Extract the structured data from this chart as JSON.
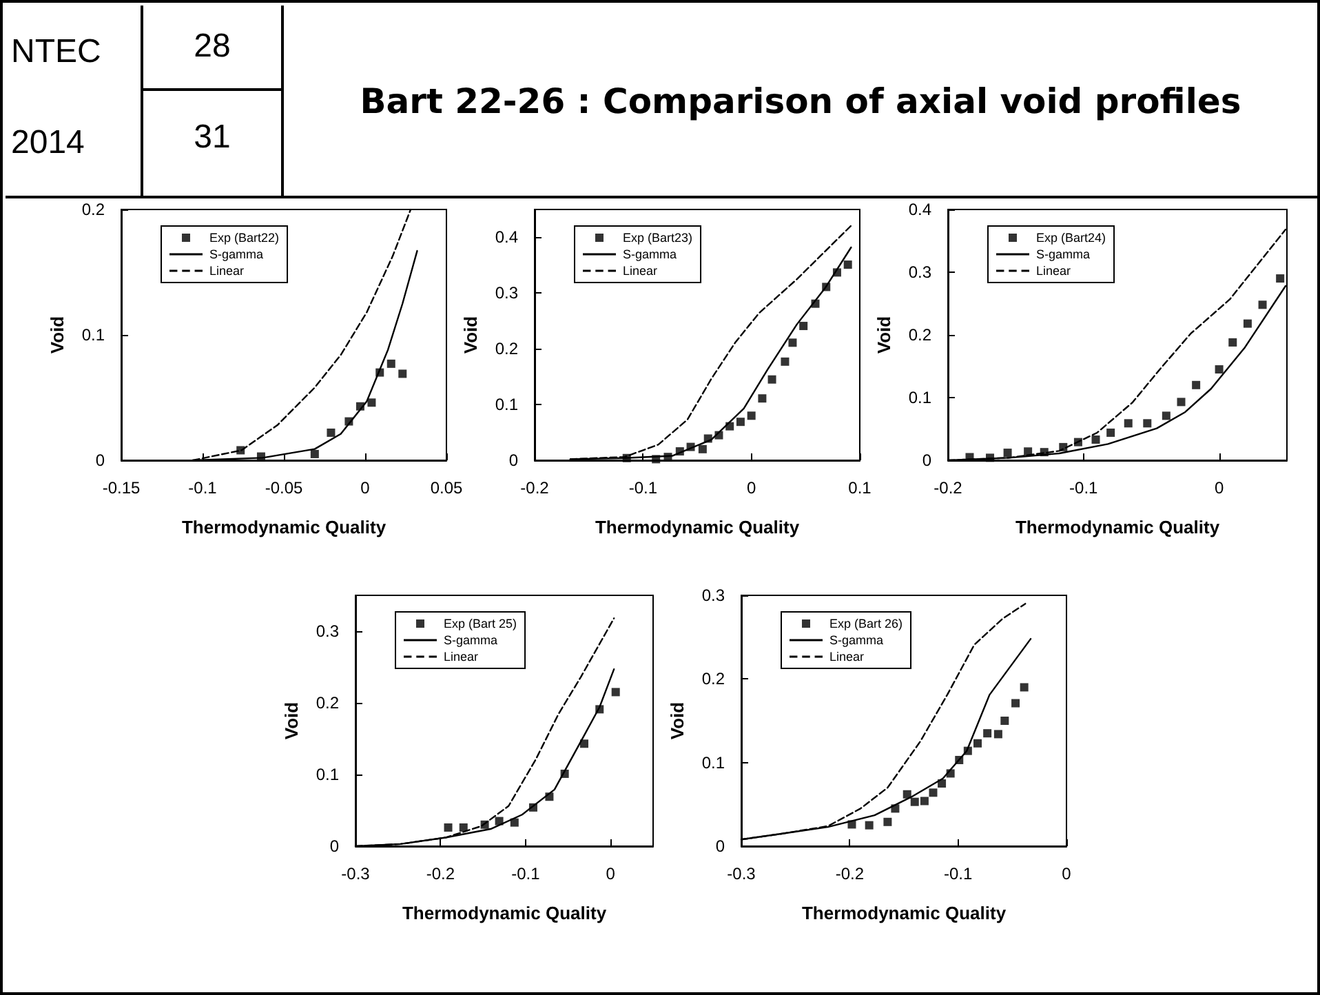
{
  "chart_data": [
    {
      "type": "other",
      "title": "Bart 22-26 : Comparison of axial void profiles",
      "annotations": [
        "NTEC",
        "2014",
        "28",
        "31"
      ]
    },
    {
      "type": "scatter",
      "xlabel": "Thermodynamic Quality",
      "ylabel": "Void",
      "xlim": [
        -0.15,
        0.05
      ],
      "xticks": [
        -0.15,
        -0.1,
        -0.05,
        0,
        0.05
      ],
      "ylim": [
        0,
        0.2
      ],
      "yticks": [
        0,
        0.1,
        0.2
      ],
      "grid": false,
      "legend": "top left",
      "series": [
        {
          "name": "Exp (Bart22)",
          "type": "scatter",
          "marker": "square",
          "color": "#000000",
          "x": [
            -0.0766,
            -0.064,
            -0.031,
            -0.021,
            -0.01,
            -0.003,
            0.004,
            0.009,
            0.016,
            0.023
          ],
          "values": [
            0.008,
            0.003,
            0.005,
            0.022,
            0.031,
            0.043,
            0.046,
            0.07,
            0.077,
            0.069
          ]
        },
        {
          "name": "S-gamma",
          "type": "line",
          "marker": "none",
          "line_style": "solid",
          "color": "#000000",
          "x": [
            -0.106,
            -0.063,
            -0.031,
            -0.015,
            0.001,
            0.014,
            0.023,
            0.032
          ],
          "values": [
            0,
            0.002,
            0.009,
            0.021,
            0.047,
            0.088,
            0.125,
            0.167
          ]
        },
        {
          "name": "Linear",
          "type": "line",
          "marker": "none",
          "line_style": "dashed",
          "color": "#000000",
          "x": [
            -0.106,
            -0.076,
            -0.054,
            -0.031,
            -0.015,
            0.001,
            0.017,
            0.028
          ],
          "values": [
            0,
            0.008,
            0.028,
            0.058,
            0.084,
            0.118,
            0.163,
            0.2
          ]
        }
      ]
    },
    {
      "type": "scatter",
      "xlabel": "Thermodynamic Quality",
      "ylabel": "Void",
      "xlim": [
        -0.2,
        0.1
      ],
      "xticks": [
        -0.2,
        -0.1,
        0,
        0.1
      ],
      "ylim": [
        0,
        0.45
      ],
      "yticks": [
        0,
        0.1,
        0.2,
        0.3,
        0.4
      ],
      "grid": false,
      "legend": "top left",
      "series": [
        {
          "name": "Exp (Bart23)",
          "type": "scatter",
          "marker": "square",
          "color": "#000000",
          "x": [
            -0.115,
            -0.088,
            -0.077,
            -0.066,
            -0.056,
            -0.045,
            -0.04,
            -0.03,
            -0.02,
            -0.01,
            0,
            0.01,
            0.019,
            0.031,
            0.038,
            0.048,
            0.059,
            0.069,
            0.079,
            0.089
          ],
          "values": [
            0.004,
            0.002,
            0.006,
            0.016,
            0.024,
            0.02,
            0.039,
            0.045,
            0.061,
            0.069,
            0.08,
            0.111,
            0.145,
            0.177,
            0.211,
            0.241,
            0.281,
            0.311,
            0.337,
            0.351
          ]
        },
        {
          "name": "S-gamma",
          "type": "line",
          "marker": "none",
          "line_style": "solid",
          "color": "#000000",
          "x": [
            -0.167,
            -0.117,
            -0.073,
            -0.037,
            -0.007,
            0.015,
            0.042,
            0.068,
            0.092
          ],
          "values": [
            0.002,
            0.004,
            0.008,
            0.037,
            0.093,
            0.163,
            0.244,
            0.309,
            0.382
          ]
        },
        {
          "name": "Linear",
          "type": "line",
          "marker": "none",
          "line_style": "dashed",
          "color": "#000000",
          "x": [
            -0.167,
            -0.117,
            -0.086,
            -0.059,
            -0.037,
            -0.015,
            0.007,
            0.042,
            0.092
          ],
          "values": [
            0.002,
            0.006,
            0.028,
            0.073,
            0.146,
            0.211,
            0.264,
            0.325,
            0.421
          ]
        }
      ]
    },
    {
      "type": "scatter",
      "xlabel": "Thermodynamic Quality",
      "ylabel": "Void",
      "xlim": [
        -0.2,
        0.05
      ],
      "xticks": [
        -0.2,
        -0.1,
        0
      ],
      "ylim": [
        0,
        0.4
      ],
      "yticks": [
        0,
        0.1,
        0.2,
        0.3,
        0.4
      ],
      "grid": false,
      "legend": "top left",
      "series": [
        {
          "name": "Exp (Bart24)",
          "type": "scatter",
          "marker": "square",
          "color": "#000000",
          "x": [
            -0.184,
            -0.169,
            -0.156,
            -0.141,
            -0.129,
            -0.115,
            -0.104,
            -0.091,
            -0.08,
            -0.067,
            -0.053,
            -0.039,
            -0.028,
            -0.017,
            0,
            0.01,
            0.021,
            0.032,
            0.045
          ],
          "values": [
            0.005,
            0.004,
            0.012,
            0.014,
            0.013,
            0.021,
            0.029,
            0.033,
            0.044,
            0.059,
            0.059,
            0.071,
            0.093,
            0.12,
            0.145,
            0.188,
            0.218,
            0.248,
            0.29
          ]
        },
        {
          "name": "S-gamma",
          "type": "line",
          "marker": "none",
          "line_style": "solid",
          "color": "#000000",
          "x": [
            -0.2,
            -0.155,
            -0.118,
            -0.082,
            -0.046,
            -0.025,
            -0.006,
            0.019,
            0.049
          ],
          "values": [
            0,
            0.004,
            0.011,
            0.026,
            0.051,
            0.077,
            0.114,
            0.18,
            0.278
          ]
        },
        {
          "name": "Linear",
          "type": "line",
          "marker": "none",
          "line_style": "dashed",
          "color": "#000000",
          "x": [
            -0.2,
            -0.155,
            -0.118,
            -0.09,
            -0.064,
            -0.043,
            -0.021,
            0.008,
            0.049
          ],
          "values": [
            0,
            0.004,
            0.015,
            0.044,
            0.092,
            0.147,
            0.202,
            0.257,
            0.368
          ]
        }
      ]
    },
    {
      "type": "scatter",
      "xlabel": "Thermodynamic Quality",
      "ylabel": "Void",
      "xlim": [
        -0.3,
        0.05
      ],
      "xticks": [
        -0.3,
        -0.2,
        -0.1,
        0
      ],
      "ylim": [
        0,
        0.35
      ],
      "yticks": [
        0,
        0.1,
        0.2,
        0.3
      ],
      "grid": false,
      "legend": "top left",
      "series": [
        {
          "name": "Exp (Bart 25)",
          "type": "scatter",
          "marker": "square",
          "color": "#000000",
          "x": [
            -0.191,
            -0.173,
            -0.148,
            -0.131,
            -0.113,
            -0.091,
            -0.072,
            -0.054,
            -0.031,
            -0.013,
            0.006
          ],
          "values": [
            0.026,
            0.026,
            0.03,
            0.035,
            0.033,
            0.054,
            0.069,
            0.101,
            0.143,
            0.191,
            0.215
          ]
        },
        {
          "name": "S-gamma",
          "type": "line",
          "marker": "none",
          "line_style": "solid",
          "color": "#000000",
          "x": [
            -0.3,
            -0.247,
            -0.194,
            -0.141,
            -0.104,
            -0.066,
            -0.035,
            -0.013,
            0.004
          ],
          "values": [
            0,
            0.003,
            0.012,
            0.024,
            0.044,
            0.079,
            0.146,
            0.194,
            0.247
          ]
        },
        {
          "name": "Linear",
          "type": "line",
          "marker": "none",
          "line_style": "dashed",
          "color": "#000000",
          "x": [
            -0.3,
            -0.247,
            -0.194,
            -0.152,
            -0.12,
            -0.088,
            -0.061,
            -0.035,
            0.004
          ],
          "values": [
            0,
            0.003,
            0.012,
            0.028,
            0.056,
            0.121,
            0.185,
            0.236,
            0.318
          ]
        }
      ]
    },
    {
      "type": "scatter",
      "xlabel": "Thermodynamic Quality",
      "ylabel": "Void",
      "xlim": [
        -0.3,
        0
      ],
      "xticks": [
        -0.3,
        -0.2,
        -0.1,
        0
      ],
      "ylim": [
        0,
        0.3
      ],
      "yticks": [
        0,
        0.1,
        0.2,
        0.3
      ],
      "grid": false,
      "legend": "top left",
      "series": [
        {
          "name": "Exp (Bart 26)",
          "type": "scatter",
          "marker": "square",
          "color": "#000000",
          "x": [
            -0.198,
            -0.182,
            -0.165,
            -0.158,
            -0.147,
            -0.14,
            -0.131,
            -0.123,
            -0.115,
            -0.107,
            -0.099,
            -0.091,
            -0.082,
            -0.073,
            -0.063,
            -0.057,
            -0.047,
            -0.039
          ],
          "values": [
            0.026,
            0.025,
            0.029,
            0.045,
            0.062,
            0.053,
            0.054,
            0.064,
            0.075,
            0.087,
            0.103,
            0.114,
            0.123,
            0.135,
            0.134,
            0.15,
            0.171,
            0.19
          ]
        },
        {
          "name": "S-gamma",
          "type": "line",
          "marker": "none",
          "line_style": "solid",
          "color": "#000000",
          "x": [
            -0.3,
            -0.262,
            -0.22,
            -0.177,
            -0.143,
            -0.114,
            -0.092,
            -0.071,
            -0.033
          ],
          "values": [
            0.008,
            0.015,
            0.023,
            0.037,
            0.059,
            0.081,
            0.114,
            0.181,
            0.248
          ]
        },
        {
          "name": "Linear",
          "type": "line",
          "marker": "none",
          "line_style": "dashed",
          "color": "#000000",
          "x": [
            -0.3,
            -0.262,
            -0.22,
            -0.19,
            -0.165,
            -0.135,
            -0.11,
            -0.085,
            -0.059,
            -0.038
          ],
          "values": [
            0.008,
            0.015,
            0.024,
            0.045,
            0.07,
            0.125,
            0.181,
            0.241,
            0.272,
            0.29
          ]
        }
      ]
    }
  ]
}
